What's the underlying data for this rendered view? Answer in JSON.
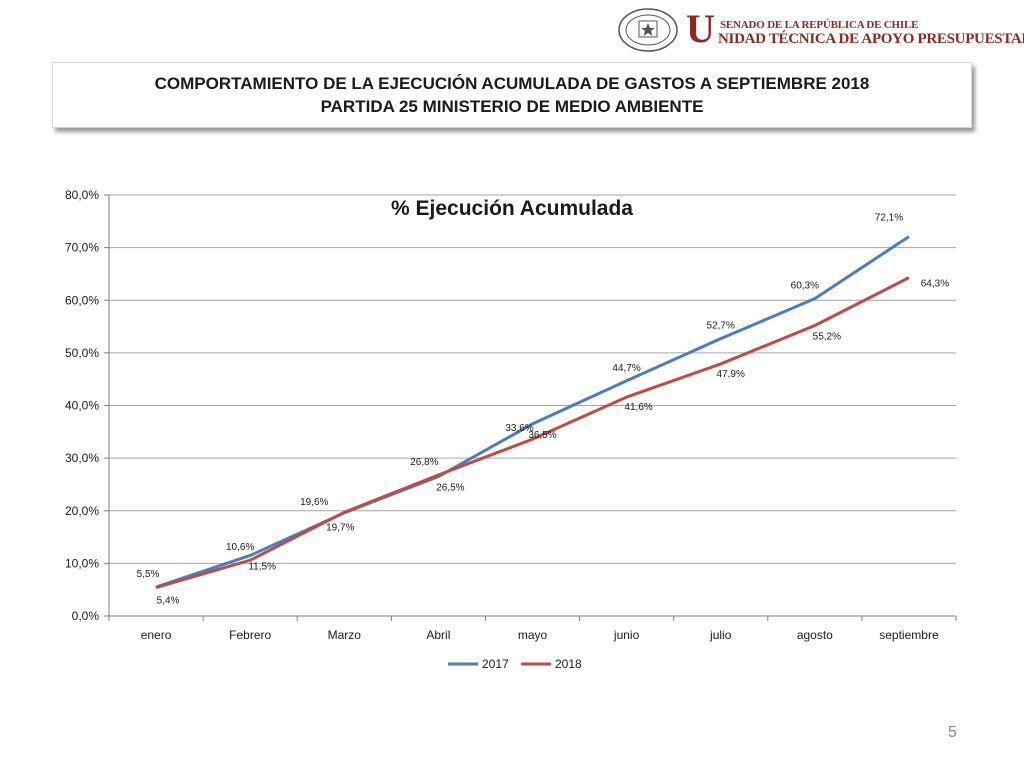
{
  "header": {
    "seal_text": "REPÚBLICA DE CHILE · SENADO",
    "big_letter": "U",
    "org_line1": "SENADO DE LA REPÚBLICA DE CHILE",
    "org_line2": "NIDAD TÉCNICA DE APOYO PRESUPUESTARIO"
  },
  "title": {
    "line1": "COMPORTAMIENTO DE LA EJECUCIÓN ACUMULADA DE GASTOS A SEPTIEMBRE 2018",
    "line2": "PARTIDA 25 MINISTERIO DE MEDIO AMBIENTE"
  },
  "page_number": "5",
  "colors": {
    "series_2017": "#4a7ebb",
    "series_2018": "#be4b48",
    "grid": "#a6a6a6"
  },
  "chart_data": {
    "type": "line",
    "title": "% Ejecución Acumulada",
    "categories": [
      "enero",
      "Febrero",
      "Marzo",
      "Abril",
      "mayo",
      "junio",
      "julio",
      "agosto",
      "septiembre"
    ],
    "ylim": [
      0,
      80
    ],
    "yticks": [
      0,
      10,
      20,
      30,
      40,
      50,
      60,
      70,
      80
    ],
    "ytick_labels": [
      "0,0%",
      "10,0%",
      "20,0%",
      "30,0%",
      "40,0%",
      "50,0%",
      "60,0%",
      "70,0%",
      "80,0%"
    ],
    "grid": true,
    "legend_position": "bottom",
    "series": [
      {
        "name": "2017",
        "values": [
          5.5,
          11.5,
          19.6,
          26.5,
          36.5,
          44.7,
          52.7,
          60.3,
          72.1
        ],
        "labels": [
          "5,5%",
          "11,5%",
          "19,6%",
          "26,5%",
          "36,5%",
          "44,7%",
          "52,7%",
          "60,3%",
          "72,1%"
        ]
      },
      {
        "name": "2018",
        "values": [
          5.4,
          10.6,
          19.7,
          26.8,
          33.6,
          41.6,
          47.9,
          55.2,
          64.3
        ],
        "labels": [
          "5,4%",
          "10,6%",
          "19,7%",
          "26,8%",
          "33,6%",
          "41,6%",
          "47,9%",
          "55,2%",
          "64,3%"
        ]
      }
    ]
  }
}
